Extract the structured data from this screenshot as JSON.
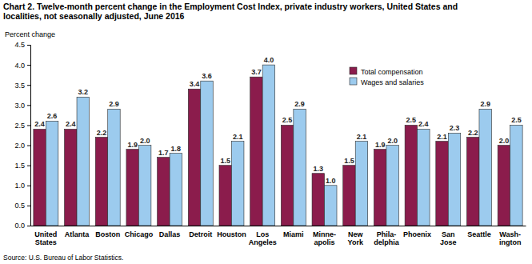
{
  "chart_data": {
    "type": "bar",
    "title": "Chart 2. Twelve-month percent change in the Employment Cost Index, private industry workers, United States and\nlocalities, not seasonally adjusted, June 2016",
    "y_label": "Percent change",
    "source": "Source: U.S. Bureau of Labor Statistics.",
    "categories": [
      "United\nStates",
      "Atlanta",
      "Boston",
      "Chicago",
      "Dallas",
      "Detroit",
      "Houston",
      "Los\nAngeles",
      "Miami",
      "Minne-\napolis",
      "New\nYork",
      "Phila-\ndelphia",
      "Phoenix",
      "San\nJose",
      "Seattle",
      "Wash-\nington"
    ],
    "series": [
      {
        "name": "Total compensation",
        "color": "#8b1c4c",
        "values": [
          2.4,
          2.4,
          2.2,
          1.9,
          1.7,
          3.4,
          1.5,
          3.7,
          2.5,
          1.3,
          1.5,
          1.9,
          2.5,
          2.1,
          2.2,
          2.0
        ],
        "value_labels": [
          "2.4",
          "2.4",
          "2.2",
          "1.9",
          "1.7",
          "3.4",
          "1.5",
          "3.7",
          "2.5",
          "1.3",
          "1.5",
          "1.9",
          "2.5",
          "2.1",
          "2.2",
          "2.0"
        ]
      },
      {
        "name": "Wages and salaries",
        "color": "#9ccbee",
        "values": [
          2.6,
          3.2,
          2.9,
          2.0,
          1.8,
          3.6,
          2.1,
          4.0,
          2.9,
          1.0,
          2.1,
          2.0,
          2.4,
          2.3,
          2.9,
          2.5
        ],
        "value_labels": [
          "2.6",
          "3.2",
          "2.9",
          "2.0",
          "1.8",
          "3.6",
          "2.1",
          "4.0",
          "2.9",
          "1.0",
          "2.1",
          "2.0",
          "2.4",
          "2.3",
          "2.9",
          "2.5"
        ]
      }
    ],
    "ylim": [
      0,
      4.5
    ],
    "yticks": [
      {
        "value": 0,
        "label": "0.0"
      },
      0.5,
      {
        "value": 1,
        "label": "1.0"
      },
      1.5,
      {
        "value": 2,
        "label": "2.0"
      },
      2.5,
      {
        "value": 3,
        "label": "3.0"
      },
      3.5,
      {
        "value": 4,
        "label": "4.0"
      },
      4.5
    ],
    "grid": false,
    "legend": "top-right",
    "data_labels": true
  }
}
